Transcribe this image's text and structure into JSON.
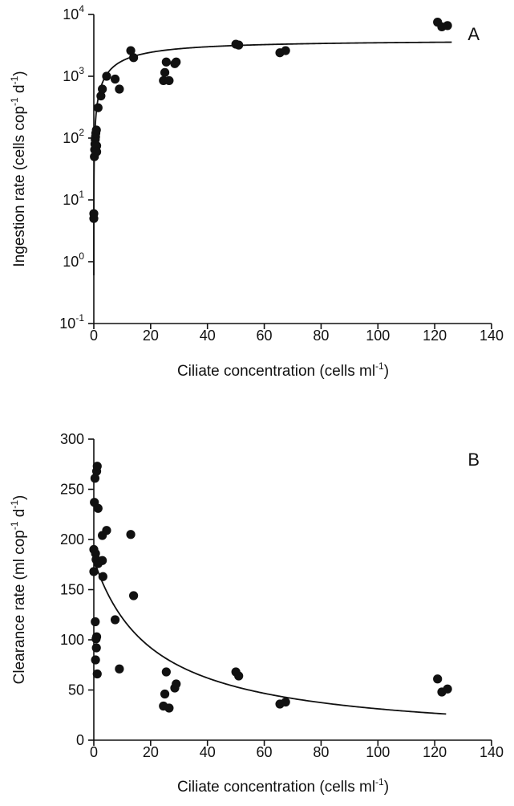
{
  "chart_data": [
    {
      "type": "scatter",
      "panel_label": "A",
      "xlabel": {
        "main": "Ciliate concentration  (cells  ml",
        "sup": "-1",
        "tail": ")"
      },
      "ylabel": {
        "parts": [
          "Ingestion rate  (cells  cop",
          "-1",
          "  d",
          "-1",
          ")"
        ]
      },
      "y_scale": "log",
      "xlim": [
        0,
        140
      ],
      "ylim": [
        0.1,
        10000
      ],
      "x_ticks": [
        0,
        20,
        40,
        60,
        80,
        100,
        120,
        140
      ],
      "x_tick_labels": [
        "0",
        "20",
        "40",
        "60",
        "80",
        "100",
        "120",
        "140"
      ],
      "y_ticks": [
        {
          "value": 0.1,
          "base": "10",
          "exp": "-1"
        },
        {
          "value": 1,
          "base": "10",
          "exp": "0"
        },
        {
          "value": 10,
          "base": "10",
          "exp": "1"
        },
        {
          "value": 100,
          "base": "10",
          "exp": "2"
        },
        {
          "value": 1000,
          "base": "10",
          "exp": "3"
        },
        {
          "value": 10000,
          "base": "10",
          "exp": "4"
        }
      ],
      "points": [
        {
          "x": 0,
          "y": 5
        },
        {
          "x": 0,
          "y": 6
        },
        {
          "x": 0.2,
          "y": 50
        },
        {
          "x": 0.3,
          "y": 65
        },
        {
          "x": 0.4,
          "y": 80
        },
        {
          "x": 0.5,
          "y": 95
        },
        {
          "x": 0.6,
          "y": 105
        },
        {
          "x": 0.7,
          "y": 120
        },
        {
          "x": 0.9,
          "y": 135
        },
        {
          "x": 1.0,
          "y": 75
        },
        {
          "x": 1.0,
          "y": 60
        },
        {
          "x": 1.5,
          "y": 310
        },
        {
          "x": 2.5,
          "y": 480
        },
        {
          "x": 3.0,
          "y": 620
        },
        {
          "x": 4.5,
          "y": 1000
        },
        {
          "x": 7.5,
          "y": 900
        },
        {
          "x": 9.0,
          "y": 620
        },
        {
          "x": 13.0,
          "y": 2600
        },
        {
          "x": 14.0,
          "y": 2000
        },
        {
          "x": 24.5,
          "y": 850
        },
        {
          "x": 25.0,
          "y": 1150
        },
        {
          "x": 25.5,
          "y": 1700
        },
        {
          "x": 26.5,
          "y": 850
        },
        {
          "x": 28.5,
          "y": 1600
        },
        {
          "x": 29.0,
          "y": 1700
        },
        {
          "x": 50.0,
          "y": 3300
        },
        {
          "x": 51.0,
          "y": 3200
        },
        {
          "x": 65.5,
          "y": 2400
        },
        {
          "x": 67.5,
          "y": 2600
        },
        {
          "x": 121.0,
          "y": 7500
        },
        {
          "x": 122.5,
          "y": 6300
        },
        {
          "x": 124.5,
          "y": 6600
        }
      ],
      "curve": {
        "model": "saturating",
        "imax": 3900,
        "k": 12,
        "x_range": [
          0.02,
          126
        ]
      }
    },
    {
      "type": "scatter",
      "panel_label": "B",
      "xlabel": {
        "main": "Ciliate concentration  (cells  ml",
        "sup": "-1",
        "tail": ")"
      },
      "ylabel": {
        "parts": [
          "Clearance rate  (ml  cop",
          "-1",
          "  d",
          "-1",
          ")"
        ]
      },
      "y_scale": "linear",
      "xlim": [
        0,
        140
      ],
      "ylim": [
        0,
        300
      ],
      "x_ticks": [
        0,
        20,
        40,
        60,
        80,
        100,
        120,
        140
      ],
      "x_tick_labels": [
        "0",
        "20",
        "40",
        "60",
        "80",
        "100",
        "120",
        "140"
      ],
      "y_ticks": [
        {
          "value": 0,
          "label": "0"
        },
        {
          "value": 50,
          "label": "50"
        },
        {
          "value": 100,
          "label": "100"
        },
        {
          "value": 150,
          "label": "150"
        },
        {
          "value": 200,
          "label": "200"
        },
        {
          "value": 250,
          "label": "250"
        },
        {
          "value": 300,
          "label": "300"
        }
      ],
      "points": [
        {
          "x": 0.0,
          "y": 168
        },
        {
          "x": 0.0,
          "y": 190
        },
        {
          "x": 0.2,
          "y": 237
        },
        {
          "x": 0.4,
          "y": 261
        },
        {
          "x": 0.6,
          "y": 186
        },
        {
          "x": 0.8,
          "y": 180
        },
        {
          "x": 1.0,
          "y": 268
        },
        {
          "x": 1.2,
          "y": 273
        },
        {
          "x": 0.5,
          "y": 118
        },
        {
          "x": 0.6,
          "y": 80
        },
        {
          "x": 0.8,
          "y": 101
        },
        {
          "x": 0.9,
          "y": 92
        },
        {
          "x": 1.0,
          "y": 103
        },
        {
          "x": 1.2,
          "y": 66
        },
        {
          "x": 1.5,
          "y": 231
        },
        {
          "x": 1.5,
          "y": 176
        },
        {
          "x": 3.0,
          "y": 179
        },
        {
          "x": 3.0,
          "y": 204
        },
        {
          "x": 3.2,
          "y": 163
        },
        {
          "x": 4.5,
          "y": 209
        },
        {
          "x": 7.5,
          "y": 120
        },
        {
          "x": 9.0,
          "y": 71
        },
        {
          "x": 13.0,
          "y": 205
        },
        {
          "x": 14.0,
          "y": 144
        },
        {
          "x": 24.5,
          "y": 34
        },
        {
          "x": 25.0,
          "y": 46
        },
        {
          "x": 25.5,
          "y": 68
        },
        {
          "x": 26.5,
          "y": 32
        },
        {
          "x": 28.5,
          "y": 52
        },
        {
          "x": 29.0,
          "y": 56
        },
        {
          "x": 50.0,
          "y": 68
        },
        {
          "x": 51.0,
          "y": 64
        },
        {
          "x": 65.5,
          "y": 36
        },
        {
          "x": 67.5,
          "y": 38
        },
        {
          "x": 121.0,
          "y": 61
        },
        {
          "x": 122.5,
          "y": 48
        },
        {
          "x": 124.5,
          "y": 51
        }
      ],
      "curve": {
        "model": "declining",
        "fmax": 180,
        "k": 21,
        "x_range": [
          0,
          124
        ]
      }
    }
  ]
}
